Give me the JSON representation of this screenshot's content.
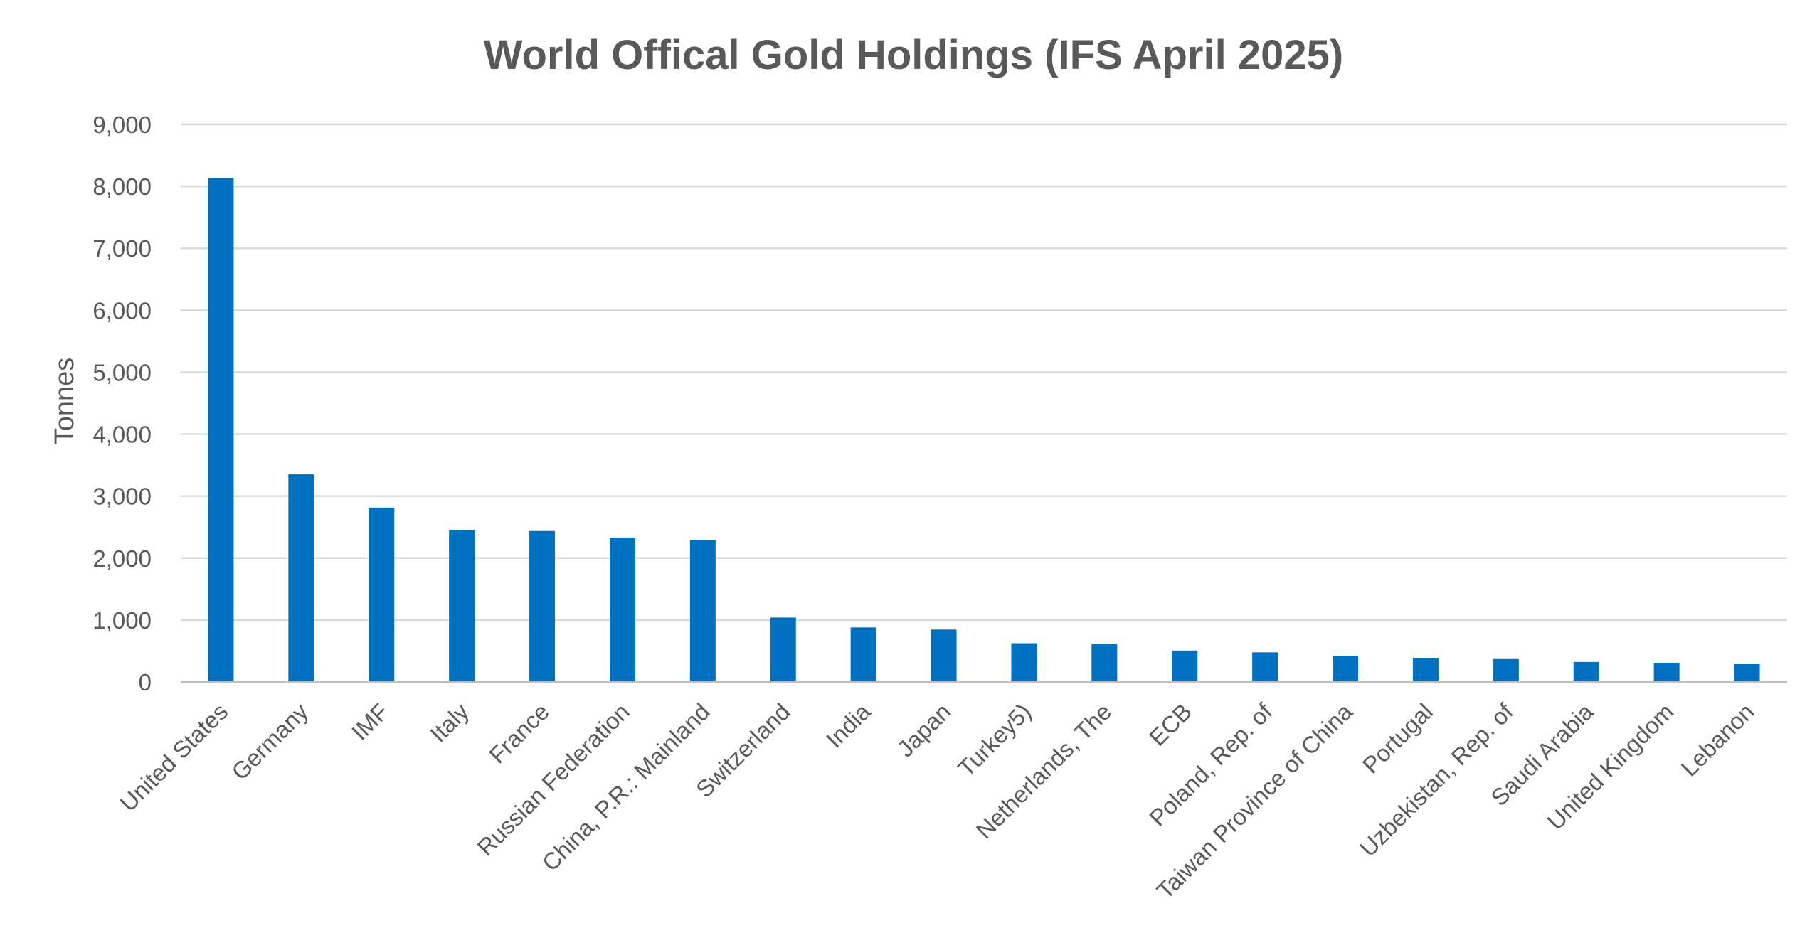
{
  "chart_data": {
    "type": "bar",
    "title": "World Offical Gold Holdings (IFS April 2025)",
    "xlabel": "",
    "ylabel": "Tonnes",
    "ylim": [
      0,
      9000
    ],
    "yticks": [
      0,
      1000,
      2000,
      3000,
      4000,
      5000,
      6000,
      7000,
      8000,
      9000
    ],
    "ytick_labels": [
      "0",
      "1,000",
      "2,000",
      "3,000",
      "4,000",
      "5,000",
      "6,000",
      "7,000",
      "8,000",
      "9,000"
    ],
    "grid": true,
    "legend": "none",
    "bar_color": "#0070c0",
    "categories": [
      "United States",
      "Germany",
      "IMF",
      "Italy",
      "France",
      "Russian Federation",
      "China, P.R.: Mainland",
      "Switzerland",
      "India",
      "Japan",
      "Turkey5)",
      "Netherlands, The",
      "ECB",
      "Poland, Rep. of",
      "Taiwan Province of China",
      "Portugal",
      "Uzbekistan, Rep. of",
      "Saudi Arabia",
      "United Kingdom",
      "Lebanon"
    ],
    "values": [
      8133,
      3351,
      2814,
      2452,
      2437,
      2330,
      2292,
      1040,
      880,
      846,
      625,
      612,
      507,
      478,
      424,
      383,
      370,
      323,
      310,
      287
    ]
  }
}
